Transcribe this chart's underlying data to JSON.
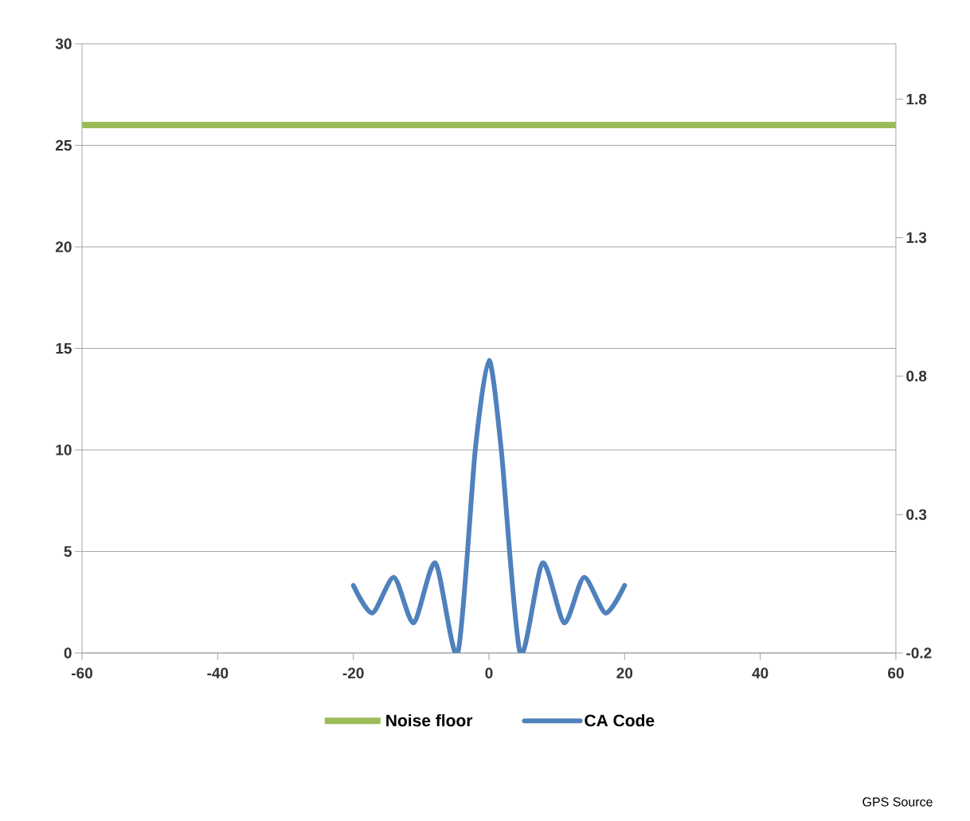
{
  "chart_data": {
    "type": "line",
    "xlim": [
      -60,
      60
    ],
    "xticks": [
      -60,
      -40,
      -20,
      0,
      20,
      40,
      60
    ],
    "ylim": [
      0,
      30
    ],
    "yticks": [
      0,
      5,
      10,
      15,
      20,
      25,
      30
    ],
    "y2lim": [
      -0.2,
      2.0
    ],
    "y2ticks": [
      -0.2,
      0.3,
      0.8,
      1.3,
      1.8
    ],
    "grid": "y",
    "legend": "bottom",
    "line_style": "solid",
    "marker": "none",
    "series": [
      {
        "name": "Noise floor",
        "color": "#9bbb59",
        "x": [
          -60,
          60
        ],
        "values": [
          26,
          26
        ]
      },
      {
        "name": "CA Code",
        "color": "#4f81bd",
        "axis": "y2",
        "x": [
          -20,
          -17.2,
          -14,
          -11.1,
          -7.9,
          -4.6,
          -2,
          0,
          1.8,
          4.6,
          7.9,
          11.1,
          14,
          17.2,
          20
        ],
        "values": [
          0.044,
          -0.056,
          0.073,
          -0.091,
          0.125,
          -0.2,
          0.538,
          0.857,
          0.538,
          -0.2,
          0.125,
          -0.091,
          0.073,
          -0.056,
          0.044
        ]
      }
    ],
    "annotations": [
      "GPS Source"
    ]
  }
}
